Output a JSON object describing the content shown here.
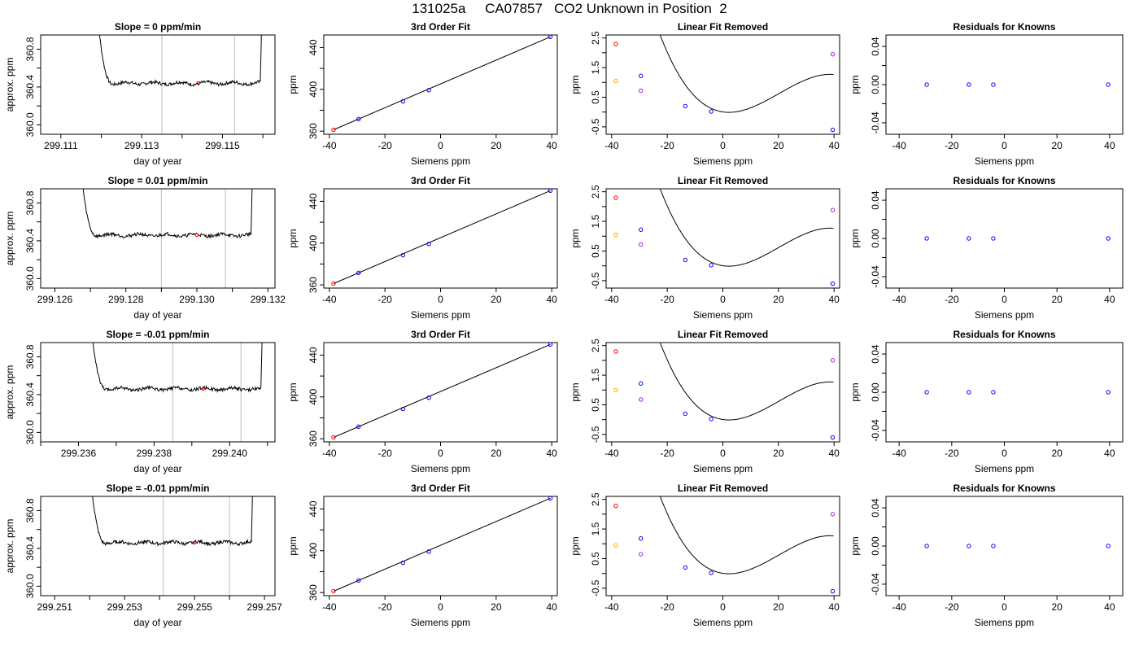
{
  "page": {
    "title": "131025a     CA07857   CO2 Unknown in Position  2"
  },
  "colors": {
    "trace": "#000000",
    "cursor": "#bebebe",
    "known": "#0000ff",
    "unknown": "#a020f0",
    "std_high": "#ff0000",
    "std_low": "#ffa500",
    "frame": "#000000"
  },
  "chart_data": [
    {
      "type": "line",
      "row": 1,
      "panel": "trace",
      "title": "Slope =  0  ppm/min",
      "xlabel": "day of year",
      "ylabel": "approx. ppm",
      "xlim": [
        299.1105,
        299.1163
      ],
      "ylim": [
        359.9,
        360.95
      ],
      "xticks": [
        299.111,
        299.112,
        299.113,
        299.114,
        299.115,
        299.116
      ],
      "xtick_labels": [
        "299.111",
        "",
        "299.113",
        "",
        "299.115",
        ""
      ],
      "yticks": [
        360.0,
        360.2,
        360.4,
        360.6,
        360.8
      ],
      "ytick_labels": [
        "360.0",
        "",
        "360.4",
        "",
        "360.8"
      ],
      "trace_start": 299.1118,
      "trace_end": 299.116,
      "plateau": 360.44,
      "cursor_lines": [
        299.1135,
        299.1153
      ],
      "marker": {
        "x": 299.1144,
        "y": 360.44
      }
    },
    {
      "type": "scatter",
      "row": 1,
      "panel": "fit",
      "title": "3rd Order Fit",
      "xlabel": "Siemens ppm",
      "ylabel": "ppm",
      "xlim": [
        -42,
        42
      ],
      "ylim": [
        357,
        452
      ],
      "xticks": [
        -40,
        -20,
        0,
        20,
        40
      ],
      "xtick_labels": [
        "-40",
        "-20",
        "0",
        "20",
        "40"
      ],
      "yticks": [
        360,
        380,
        400,
        420,
        440
      ],
      "ytick_labels": [
        "360",
        "",
        "400",
        "",
        "440"
      ],
      "fit_line": [
        [
          -38.5,
          361.3
        ],
        [
          39.5,
          450.2
        ]
      ],
      "points": [
        {
          "x": -38.5,
          "y": 361.3,
          "role": "std_high"
        },
        {
          "x": -29.5,
          "y": 371.5,
          "role": "known"
        },
        {
          "x": -13.5,
          "y": 388.5,
          "role": "known"
        },
        {
          "x": -4.2,
          "y": 399.2,
          "role": "known"
        },
        {
          "x": 39.5,
          "y": 450.2,
          "role": "known"
        }
      ]
    },
    {
      "type": "scatter",
      "row": 1,
      "panel": "linear_removed",
      "title": "Linear Fit Removed",
      "xlabel": "Siemens ppm",
      "ylabel": "ppm",
      "xlim": [
        -42,
        42
      ],
      "ylim": [
        -0.75,
        2.6
      ],
      "xticks": [
        -40,
        -20,
        0,
        20,
        40
      ],
      "xtick_labels": [
        "-40",
        "-20",
        "0",
        "20",
        "40"
      ],
      "yticks": [
        -0.5,
        0,
        0.5,
        1,
        1.5,
        2,
        2.5
      ],
      "ytick_labels": [
        "-0.5",
        "",
        "0.5",
        "",
        "1.5",
        "",
        "2.5"
      ],
      "curve": {
        "x_from": -39.5,
        "x_to": 39.8,
        "a": -5.38e-05,
        "b": 0.00328,
        "c": -0.0136,
        "d": 0.004
      },
      "points": [
        {
          "x": -38.5,
          "y": 2.3,
          "role": "std_high"
        },
        {
          "x": -38.5,
          "y": 1.05,
          "role": "std_low"
        },
        {
          "x": -29.5,
          "y": 1.22,
          "role": "known"
        },
        {
          "x": -29.5,
          "y": 0.72,
          "role": "unknown"
        },
        {
          "x": -13.5,
          "y": 0.2,
          "role": "known"
        },
        {
          "x": -4.2,
          "y": 0.02,
          "role": "known"
        },
        {
          "x": 39.5,
          "y": 1.95,
          "role": "unknown"
        },
        {
          "x": 39.5,
          "y": -0.6,
          "role": "known"
        }
      ]
    },
    {
      "type": "scatter",
      "row": 1,
      "panel": "residuals",
      "title": "Residuals for Knowns",
      "xlabel": "Siemens ppm",
      "ylabel": "ppm",
      "xlim": [
        -45,
        45
      ],
      "ylim": [
        -0.052,
        0.052
      ],
      "xticks": [
        -40,
        -20,
        0,
        20,
        40
      ],
      "xtick_labels": [
        "-40",
        "-20",
        "0",
        "20",
        "40"
      ],
      "yticks": [
        -0.04,
        -0.02,
        0,
        0.02,
        0.04
      ],
      "ytick_labels": [
        "-0.04",
        "",
        "0.00",
        "",
        "0.04"
      ],
      "points": [
        {
          "x": -29.5,
          "y": 0,
          "role": "known"
        },
        {
          "x": -13.5,
          "y": 0,
          "role": "known"
        },
        {
          "x": -4.2,
          "y": 0,
          "role": "known"
        },
        {
          "x": 39.5,
          "y": 0,
          "role": "known"
        }
      ]
    },
    {
      "type": "line",
      "row": 2,
      "panel": "trace",
      "title": "Slope =  0.01  ppm/min",
      "xlabel": "day of year",
      "ylabel": "approx. ppm",
      "xlim": [
        299.1256,
        299.1322
      ],
      "ylim": [
        359.9,
        360.95
      ],
      "xticks": [
        299.126,
        299.127,
        299.128,
        299.129,
        299.13,
        299.131,
        299.132
      ],
      "xtick_labels": [
        "299.126",
        "",
        "299.128",
        "",
        "299.130",
        "",
        "299.132"
      ],
      "yticks": [
        360.0,
        360.2,
        360.4,
        360.6,
        360.8
      ],
      "ytick_labels": [
        "360.0",
        "",
        "360.4",
        "",
        "360.8"
      ],
      "trace_start": 299.1266,
      "trace_end": 299.1316,
      "plateau": 360.46,
      "cursor_lines": [
        299.129,
        299.1308
      ],
      "marker": {
        "x": 299.13,
        "y": 360.46
      }
    },
    {
      "type": "scatter",
      "row": 2,
      "panel": "fit",
      "title": "3rd Order Fit",
      "xlabel": "Siemens ppm",
      "ylabel": "ppm",
      "xlim": [
        -42,
        42
      ],
      "ylim": [
        357,
        452
      ],
      "xticks": [
        -40,
        -20,
        0,
        20,
        40
      ],
      "xtick_labels": [
        "-40",
        "-20",
        "0",
        "20",
        "40"
      ],
      "yticks": [
        360,
        380,
        400,
        420,
        440
      ],
      "ytick_labels": [
        "360",
        "",
        "400",
        "",
        "440"
      ],
      "fit_line": [
        [
          -38.5,
          361.3
        ],
        [
          39.5,
          450.2
        ]
      ],
      "points": [
        {
          "x": -38.5,
          "y": 361.3,
          "role": "std_high"
        },
        {
          "x": -29.5,
          "y": 371.5,
          "role": "known"
        },
        {
          "x": -13.5,
          "y": 388.5,
          "role": "known"
        },
        {
          "x": -4.2,
          "y": 399.2,
          "role": "known"
        },
        {
          "x": 39.5,
          "y": 450.2,
          "role": "known"
        }
      ]
    },
    {
      "type": "scatter",
      "row": 2,
      "panel": "linear_removed",
      "title": "Linear Fit Removed",
      "xlabel": "Siemens ppm",
      "ylabel": "ppm",
      "xlim": [
        -42,
        42
      ],
      "ylim": [
        -0.75,
        2.6
      ],
      "xticks": [
        -40,
        -20,
        0,
        20,
        40
      ],
      "xtick_labels": [
        "-40",
        "-20",
        "0",
        "20",
        "40"
      ],
      "yticks": [
        -0.5,
        0,
        0.5,
        1,
        1.5,
        2,
        2.5
      ],
      "ytick_labels": [
        "-0.5",
        "",
        "0.5",
        "",
        "1.5",
        "",
        "2.5"
      ],
      "curve": {
        "x_from": -39.5,
        "x_to": 39.8,
        "a": -5.38e-05,
        "b": 0.00328,
        "c": -0.0136,
        "d": 0.004
      },
      "points": [
        {
          "x": -38.5,
          "y": 2.3,
          "role": "std_high"
        },
        {
          "x": -38.5,
          "y": 1.05,
          "role": "std_low"
        },
        {
          "x": -29.5,
          "y": 1.22,
          "role": "known"
        },
        {
          "x": -29.5,
          "y": 0.72,
          "role": "unknown"
        },
        {
          "x": -13.5,
          "y": 0.2,
          "role": "known"
        },
        {
          "x": -4.2,
          "y": 0.02,
          "role": "known"
        },
        {
          "x": 39.5,
          "y": 1.88,
          "role": "unknown"
        },
        {
          "x": 39.5,
          "y": -0.6,
          "role": "known"
        }
      ]
    },
    {
      "type": "scatter",
      "row": 2,
      "panel": "residuals",
      "title": "Residuals for Knowns",
      "xlabel": "Siemens ppm",
      "ylabel": "ppm",
      "xlim": [
        -45,
        45
      ],
      "ylim": [
        -0.052,
        0.052
      ],
      "xticks": [
        -40,
        -20,
        0,
        20,
        40
      ],
      "xtick_labels": [
        "-40",
        "-20",
        "0",
        "20",
        "40"
      ],
      "yticks": [
        -0.04,
        -0.02,
        0,
        0.02,
        0.04
      ],
      "ytick_labels": [
        "-0.04",
        "",
        "0.00",
        "",
        "0.04"
      ],
      "points": [
        {
          "x": -29.5,
          "y": 0,
          "role": "known"
        },
        {
          "x": -13.5,
          "y": 0,
          "role": "known"
        },
        {
          "x": -4.2,
          "y": 0,
          "role": "known"
        },
        {
          "x": 39.5,
          "y": 0,
          "role": "known"
        }
      ]
    },
    {
      "type": "line",
      "row": 3,
      "panel": "trace",
      "title": "Slope =  -0.01  ppm/min",
      "xlabel": "day of year",
      "ylabel": "approx. ppm",
      "xlim": [
        299.235,
        299.2412
      ],
      "ylim": [
        359.9,
        360.95
      ],
      "xticks": [
        299.235,
        299.236,
        299.237,
        299.238,
        299.239,
        299.24,
        299.241
      ],
      "xtick_labels": [
        "",
        "299.236",
        "",
        "299.238",
        "",
        "299.240",
        ""
      ],
      "yticks": [
        360.0,
        360.2,
        360.4,
        360.6,
        360.8
      ],
      "ytick_labels": [
        "360.0",
        "",
        "360.4",
        "",
        "360.8"
      ],
      "trace_start": 299.2362,
      "trace_end": 299.2409,
      "plateau": 360.46,
      "cursor_lines": [
        299.2385,
        299.2403
      ],
      "marker": {
        "x": 299.2393,
        "y": 360.46
      }
    },
    {
      "type": "scatter",
      "row": 3,
      "panel": "fit",
      "title": "3rd Order Fit",
      "xlabel": "Siemens ppm",
      "ylabel": "ppm",
      "xlim": [
        -42,
        42
      ],
      "ylim": [
        357,
        452
      ],
      "xticks": [
        -40,
        -20,
        0,
        20,
        40
      ],
      "xtick_labels": [
        "-40",
        "-20",
        "0",
        "20",
        "40"
      ],
      "yticks": [
        360,
        380,
        400,
        420,
        440
      ],
      "ytick_labels": [
        "360",
        "",
        "400",
        "",
        "440"
      ],
      "fit_line": [
        [
          -38.5,
          361.3
        ],
        [
          39.5,
          450.2
        ]
      ],
      "points": [
        {
          "x": -38.5,
          "y": 361.3,
          "role": "std_high"
        },
        {
          "x": -29.5,
          "y": 371.5,
          "role": "known"
        },
        {
          "x": -13.5,
          "y": 388.5,
          "role": "known"
        },
        {
          "x": -4.2,
          "y": 399.2,
          "role": "known"
        },
        {
          "x": 39.5,
          "y": 450.2,
          "role": "known"
        }
      ]
    },
    {
      "type": "scatter",
      "row": 3,
      "panel": "linear_removed",
      "title": "Linear Fit Removed",
      "xlabel": "Siemens ppm",
      "ylabel": "ppm",
      "xlim": [
        -42,
        42
      ],
      "ylim": [
        -0.75,
        2.6
      ],
      "xticks": [
        -40,
        -20,
        0,
        20,
        40
      ],
      "xtick_labels": [
        "-40",
        "-20",
        "0",
        "20",
        "40"
      ],
      "yticks": [
        -0.5,
        0,
        0.5,
        1,
        1.5,
        2,
        2.5
      ],
      "ytick_labels": [
        "-0.5",
        "",
        "0.5",
        "",
        "1.5",
        "",
        "2.5"
      ],
      "curve": {
        "x_from": -39.5,
        "x_to": 39.8,
        "a": -5.38e-05,
        "b": 0.00328,
        "c": -0.0136,
        "d": 0.004
      },
      "points": [
        {
          "x": -38.5,
          "y": 2.3,
          "role": "std_high"
        },
        {
          "x": -38.5,
          "y": 1.0,
          "role": "std_low"
        },
        {
          "x": -29.5,
          "y": 1.22,
          "role": "known"
        },
        {
          "x": -29.5,
          "y": 0.68,
          "role": "unknown"
        },
        {
          "x": -13.5,
          "y": 0.2,
          "role": "known"
        },
        {
          "x": -4.2,
          "y": 0.02,
          "role": "known"
        },
        {
          "x": 39.5,
          "y": 2.0,
          "role": "unknown"
        },
        {
          "x": 39.5,
          "y": -0.6,
          "role": "known"
        }
      ]
    },
    {
      "type": "scatter",
      "row": 3,
      "panel": "residuals",
      "title": "Residuals for Knowns",
      "xlabel": "Siemens ppm",
      "ylabel": "ppm",
      "xlim": [
        -45,
        45
      ],
      "ylim": [
        -0.052,
        0.052
      ],
      "xticks": [
        -40,
        -20,
        0,
        20,
        40
      ],
      "xtick_labels": [
        "-40",
        "-20",
        "0",
        "20",
        "40"
      ],
      "yticks": [
        -0.04,
        -0.02,
        0,
        0.02,
        0.04
      ],
      "ytick_labels": [
        "-0.04",
        "",
        "0.00",
        "",
        "0.04"
      ],
      "points": [
        {
          "x": -29.5,
          "y": 0,
          "role": "known"
        },
        {
          "x": -13.5,
          "y": 0,
          "role": "known"
        },
        {
          "x": -4.2,
          "y": 0,
          "role": "known"
        },
        {
          "x": 39.5,
          "y": 0,
          "role": "known"
        }
      ]
    },
    {
      "type": "line",
      "row": 4,
      "panel": "trace",
      "title": "Slope =  -0.01  ppm/min",
      "xlabel": "day of year",
      "ylabel": "approx. ppm",
      "xlim": [
        299.2506,
        299.2573
      ],
      "ylim": [
        359.9,
        360.95
      ],
      "xticks": [
        299.251,
        299.252,
        299.253,
        299.254,
        299.255,
        299.256,
        299.257
      ],
      "xtick_labels": [
        "299.251",
        "",
        "299.253",
        "",
        "299.255",
        "",
        "299.257"
      ],
      "yticks": [
        360.0,
        360.2,
        360.4,
        360.6,
        360.8
      ],
      "ytick_labels": [
        "360.0",
        "",
        "360.4",
        "",
        "360.8"
      ],
      "trace_start": 299.2519,
      "trace_end": 299.2567,
      "plateau": 360.46,
      "cursor_lines": [
        299.2541,
        299.256
      ],
      "marker": {
        "x": 299.255,
        "y": 360.46
      }
    },
    {
      "type": "scatter",
      "row": 4,
      "panel": "fit",
      "title": "3rd Order Fit",
      "xlabel": "Siemens ppm",
      "ylabel": "ppm",
      "xlim": [
        -42,
        42
      ],
      "ylim": [
        357,
        452
      ],
      "xticks": [
        -40,
        -20,
        0,
        20,
        40
      ],
      "xtick_labels": [
        "-40",
        "-20",
        "0",
        "20",
        "40"
      ],
      "yticks": [
        360,
        380,
        400,
        420,
        440
      ],
      "ytick_labels": [
        "360",
        "",
        "400",
        "",
        "440"
      ],
      "fit_line": [
        [
          -38.5,
          361.3
        ],
        [
          39.5,
          450.2
        ]
      ],
      "points": [
        {
          "x": -38.5,
          "y": 361.3,
          "role": "std_high"
        },
        {
          "x": -29.5,
          "y": 371.5,
          "role": "known"
        },
        {
          "x": -13.5,
          "y": 388.5,
          "role": "known"
        },
        {
          "x": -4.2,
          "y": 399.2,
          "role": "known"
        },
        {
          "x": 39.5,
          "y": 450.2,
          "role": "known"
        }
      ]
    },
    {
      "type": "scatter",
      "row": 4,
      "panel": "linear_removed",
      "title": "Linear Fit Removed",
      "xlabel": "Siemens ppm",
      "ylabel": "ppm",
      "xlim": [
        -42,
        42
      ],
      "ylim": [
        -0.75,
        2.6
      ],
      "xticks": [
        -40,
        -20,
        0,
        20,
        40
      ],
      "xtick_labels": [
        "-40",
        "-20",
        "0",
        "20",
        "40"
      ],
      "yticks": [
        -0.5,
        0,
        0.5,
        1,
        1.5,
        2,
        2.5
      ],
      "ytick_labels": [
        "-0.5",
        "",
        "0.5",
        "",
        "1.5",
        "",
        "2.5"
      ],
      "curve": {
        "x_from": -39.5,
        "x_to": 39.8,
        "a": -5.38e-05,
        "b": 0.00328,
        "c": -0.0136,
        "d": 0.004
      },
      "points": [
        {
          "x": -38.5,
          "y": 2.28,
          "role": "std_high"
        },
        {
          "x": -38.5,
          "y": 0.95,
          "role": "std_low"
        },
        {
          "x": -29.5,
          "y": 1.18,
          "role": "known"
        },
        {
          "x": -29.5,
          "y": 0.65,
          "role": "unknown"
        },
        {
          "x": -13.5,
          "y": 0.2,
          "role": "known"
        },
        {
          "x": -4.2,
          "y": 0.02,
          "role": "known"
        },
        {
          "x": 39.5,
          "y": 2.0,
          "role": "unknown"
        },
        {
          "x": 39.5,
          "y": -0.6,
          "role": "known"
        }
      ]
    },
    {
      "type": "scatter",
      "row": 4,
      "panel": "residuals",
      "title": "Residuals for Knowns",
      "xlabel": "Siemens ppm",
      "ylabel": "ppm",
      "xlim": [
        -45,
        45
      ],
      "ylim": [
        -0.052,
        0.052
      ],
      "xticks": [
        -40,
        -20,
        0,
        20,
        40
      ],
      "xtick_labels": [
        "-40",
        "-20",
        "0",
        "20",
        "40"
      ],
      "yticks": [
        -0.04,
        -0.02,
        0,
        0.02,
        0.04
      ],
      "ytick_labels": [
        "-0.04",
        "",
        "0.00",
        "",
        "0.04"
      ],
      "points": [
        {
          "x": -29.5,
          "y": 0,
          "role": "known"
        },
        {
          "x": -13.5,
          "y": 0,
          "role": "known"
        },
        {
          "x": -4.2,
          "y": 0,
          "role": "known"
        },
        {
          "x": 39.5,
          "y": 0,
          "role": "known"
        }
      ]
    }
  ]
}
